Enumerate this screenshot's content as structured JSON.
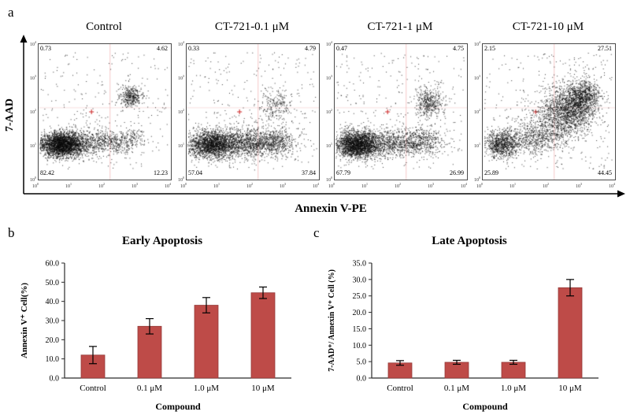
{
  "panels": {
    "a": "a",
    "b": "b",
    "c": "c"
  },
  "flow": {
    "y_axis_label": "7-AAD",
    "x_axis_label": "Annexin V-PE",
    "tick_exponents": [
      0,
      1,
      2,
      3,
      4
    ],
    "plots": [
      {
        "title": "Control",
        "quadrants": {
          "ul": "0.73",
          "ur": "4.62",
          "ll": "82.42",
          "lr": "12.23"
        },
        "scatter": 260,
        "clusters": [
          [
            0.17,
            0.26,
            0.085,
            0.045,
            2600
          ],
          [
            0.36,
            0.27,
            0.13,
            0.05,
            650
          ],
          [
            0.58,
            0.28,
            0.07,
            0.045,
            220
          ],
          [
            0.7,
            0.61,
            0.045,
            0.04,
            380
          ],
          [
            0.72,
            0.3,
            0.05,
            0.04,
            120
          ]
        ]
      },
      {
        "title": "CT-721-0.1 μM",
        "quadrants": {
          "ul": "0.33",
          "ur": "4.79",
          "ll": "57.04",
          "lr": "37.84"
        },
        "scatter": 300,
        "clusters": [
          [
            0.19,
            0.26,
            0.095,
            0.05,
            1900
          ],
          [
            0.46,
            0.27,
            0.15,
            0.055,
            1300
          ],
          [
            0.68,
            0.28,
            0.07,
            0.05,
            320
          ],
          [
            0.67,
            0.55,
            0.07,
            0.06,
            230
          ]
        ]
      },
      {
        "title": "CT-721-1 μM",
        "quadrants": {
          "ul": "0.47",
          "ur": "4.75",
          "ll": "67.79",
          "lr": "26.99"
        },
        "scatter": 300,
        "clusters": [
          [
            0.17,
            0.26,
            0.085,
            0.05,
            2300
          ],
          [
            0.44,
            0.27,
            0.14,
            0.05,
            950
          ],
          [
            0.67,
            0.29,
            0.07,
            0.05,
            300
          ],
          [
            0.71,
            0.57,
            0.05,
            0.055,
            430
          ]
        ]
      },
      {
        "title": "CT-721-10 μM",
        "quadrants": {
          "ul": "2.15",
          "ur": "27.51",
          "ll": "25.89",
          "lr": "44.45"
        },
        "scatter": 320,
        "clusters": [
          [
            0.14,
            0.26,
            0.065,
            0.05,
            850
          ],
          [
            0.38,
            0.3,
            0.13,
            0.06,
            550
          ],
          [
            0.52,
            0.42,
            0.11,
            0.08,
            500
          ],
          [
            0.66,
            0.53,
            0.1,
            0.09,
            1500
          ],
          [
            0.76,
            0.62,
            0.06,
            0.06,
            650
          ]
        ]
      }
    ]
  },
  "chart_data": [
    {
      "type": "bar",
      "panel": "b",
      "title": "Early Apoptosis",
      "categories": [
        "Control",
        "0.1 μM",
        "1.0 μM",
        "10 μM"
      ],
      "values": [
        12.0,
        27.0,
        38.0,
        44.5
      ],
      "errors": [
        4.5,
        4.0,
        4.0,
        3.0
      ],
      "xlabel": "Compound",
      "ylabel": "Annexin V⁺ Cell(%)",
      "ylim": [
        0,
        60
      ],
      "ytick_step": 10,
      "bar_color": "#be4b48",
      "bar_edge_color": "#943b39",
      "error_color": "#000000",
      "legend": "none",
      "grid": false
    },
    {
      "type": "bar",
      "panel": "c",
      "title": "Late Apoptosis",
      "categories": [
        "Control",
        "0.1 μM",
        "1.0 μM",
        "10 μM"
      ],
      "values": [
        4.6,
        4.8,
        4.8,
        27.5
      ],
      "errors": [
        0.7,
        0.6,
        0.6,
        2.5
      ],
      "xlabel": "Compound",
      "ylabel": "7-AAD⁺/ Annexin V⁺ Cell (%)",
      "ylim": [
        0,
        35
      ],
      "ytick_step": 5,
      "bar_color": "#be4b48",
      "bar_edge_color": "#943b39",
      "error_color": "#000000",
      "legend": "none",
      "grid": false
    }
  ]
}
